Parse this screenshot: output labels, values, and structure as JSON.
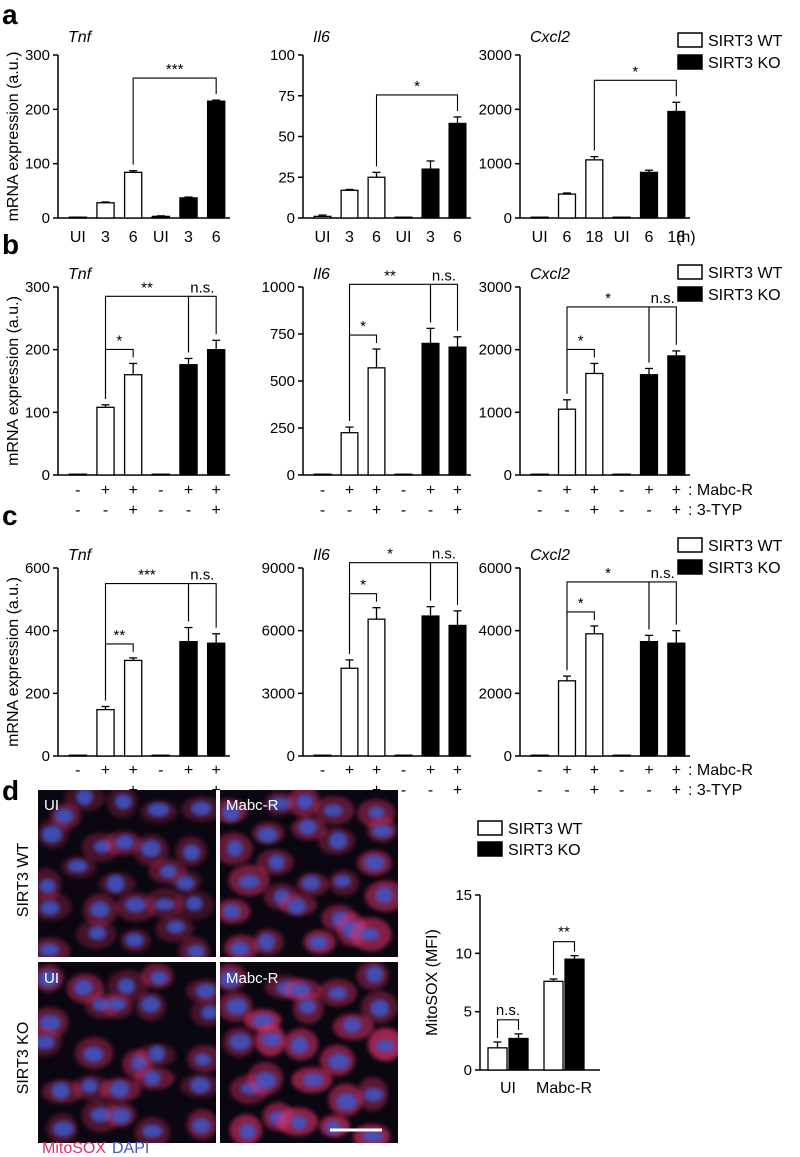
{
  "colors": {
    "wt_fill": "#ffffff",
    "ko_fill": "#000000",
    "mitosox": "#e0306a",
    "dapi": "#3f56c8"
  },
  "panels": {
    "a": {
      "label": "a"
    },
    "b": {
      "label": "b"
    },
    "c": {
      "label": "c"
    },
    "d": {
      "label": "d"
    }
  },
  "legend": {
    "wt": "SIRT3 WT",
    "ko": "SIRT3 KO"
  },
  "treatments": {
    "mabc": ": Mabc-R",
    "typ": ": 3-TYP",
    "plus": "+",
    "minus": "-"
  },
  "hour_unit": "(h)",
  "ylabels": {
    "mrna": "mRNA expression (a.u.)",
    "mitosox": "MitoSOX (MFI)"
  },
  "micrograph": {
    "col_labels": [
      "UI",
      "Mabc-R",
      "UI",
      "Mabc-R"
    ],
    "row_labels": [
      "SIRT3 WT",
      "SIRT3 KO"
    ],
    "stain_mitosox": "MitoSOX",
    "stain_dapi": "DAPI"
  },
  "chart_data": [
    {
      "id": "a-tnf",
      "type": "bar",
      "title": "Tnf",
      "ylabel": "mRNA expression (a.u.)",
      "ylim": [
        0,
        300
      ],
      "yticks": [
        0,
        100,
        200,
        300
      ],
      "categories": [
        "UI",
        "3",
        "6",
        "UI",
        "3",
        "6"
      ],
      "genotype": [
        "WT",
        "WT",
        "WT",
        "KO",
        "KO",
        "KO"
      ],
      "values": [
        1,
        28,
        84,
        3,
        37,
        215
      ],
      "errors": [
        0.5,
        1.5,
        3,
        1,
        1.5,
        2
      ],
      "annotations": [
        {
          "from": 2,
          "to": 5,
          "text": "***"
        }
      ]
    },
    {
      "id": "a-il6",
      "type": "bar",
      "title": "Il6",
      "ylim": [
        0,
        100
      ],
      "yticks": [
        0,
        25,
        50,
        75,
        100
      ],
      "categories": [
        "UI",
        "3",
        "6",
        "UI",
        "3",
        "6"
      ],
      "genotype": [
        "WT",
        "WT",
        "WT",
        "KO",
        "KO",
        "KO"
      ],
      "values": [
        1,
        17,
        25,
        0,
        30,
        58
      ],
      "errors": [
        0.8,
        0.5,
        3,
        0,
        5,
        4
      ],
      "annotations": [
        {
          "from": 2,
          "to": 5,
          "text": "*"
        }
      ]
    },
    {
      "id": "a-cxcl2",
      "type": "bar",
      "title": "Cxcl2",
      "ylim": [
        0,
        3000
      ],
      "yticks": [
        0,
        1000,
        2000,
        3000
      ],
      "categories": [
        "UI",
        "6",
        "18",
        "UI",
        "6",
        "18"
      ],
      "genotype": [
        "WT",
        "WT",
        "WT",
        "KO",
        "KO",
        "KO"
      ],
      "values": [
        0,
        440,
        1070,
        0,
        840,
        1960
      ],
      "errors": [
        0,
        20,
        60,
        0,
        40,
        170
      ],
      "annotations": [
        {
          "from": 2,
          "to": 5,
          "text": "*"
        }
      ]
    },
    {
      "id": "b-tnf",
      "type": "bar",
      "title": "Tnf",
      "ylabel": "mRNA expression (a.u.)",
      "ylim": [
        0,
        300
      ],
      "yticks": [
        0,
        100,
        200,
        300
      ],
      "mabc": [
        "-",
        "+",
        "+",
        "-",
        "+",
        "+"
      ],
      "typ": [
        "-",
        "-",
        "+",
        "-",
        "-",
        "+"
      ],
      "genotype": [
        "WT",
        "WT",
        "WT",
        "KO",
        "KO",
        "KO"
      ],
      "values": [
        0,
        108,
        160,
        1,
        176,
        200
      ],
      "errors": [
        0,
        4,
        18,
        0,
        10,
        15
      ],
      "annotations": [
        {
          "from": 1,
          "to": 2,
          "text": "*",
          "level": 1
        },
        {
          "from": 1,
          "to": 4,
          "text": "**",
          "level": 2
        },
        {
          "from": 4,
          "to": 5,
          "text": "n.s.",
          "level": 2
        }
      ]
    },
    {
      "id": "b-il6",
      "type": "bar",
      "title": "Il6",
      "ylim": [
        0,
        1000
      ],
      "yticks": [
        0,
        250,
        500,
        750,
        1000
      ],
      "mabc": [
        "-",
        "+",
        "+",
        "-",
        "+",
        "+"
      ],
      "typ": [
        "-",
        "-",
        "+",
        "-",
        "-",
        "+"
      ],
      "genotype": [
        "WT",
        "WT",
        "WT",
        "KO",
        "KO",
        "KO"
      ],
      "values": [
        0,
        225,
        570,
        2,
        700,
        680
      ],
      "errors": [
        0,
        30,
        100,
        0,
        80,
        55
      ],
      "annotations": [
        {
          "from": 1,
          "to": 2,
          "text": "*",
          "level": 1
        },
        {
          "from": 1,
          "to": 4,
          "text": "**",
          "level": 2
        },
        {
          "from": 4,
          "to": 5,
          "text": "n.s.",
          "level": 2
        }
      ]
    },
    {
      "id": "b-cxcl2",
      "type": "bar",
      "title": "Cxcl2",
      "ylim": [
        0,
        3000
      ],
      "yticks": [
        0,
        1000,
        2000,
        3000
      ],
      "mabc": [
        "-",
        "+",
        "+",
        "-",
        "+",
        "+"
      ],
      "typ": [
        "-",
        "-",
        "+",
        "-",
        "-",
        "+"
      ],
      "genotype": [
        "WT",
        "WT",
        "WT",
        "KO",
        "KO",
        "KO"
      ],
      "values": [
        0,
        1050,
        1620,
        10,
        1600,
        1900
      ],
      "errors": [
        0,
        150,
        160,
        0,
        100,
        80
      ],
      "annotations": [
        {
          "from": 1,
          "to": 2,
          "text": "*",
          "level": 1
        },
        {
          "from": 1,
          "to": 4,
          "text": "*",
          "level": 2
        },
        {
          "from": 4,
          "to": 5,
          "text": "n.s.",
          "level": 2
        }
      ]
    },
    {
      "id": "c-tnf",
      "type": "bar",
      "title": "Tnf",
      "ylabel": "mRNA expression (a.u.)",
      "ylim": [
        0,
        600
      ],
      "yticks": [
        0,
        200,
        400,
        600
      ],
      "mabc": [
        "-",
        "+",
        "+",
        "-",
        "+",
        "+"
      ],
      "typ": [
        "-",
        "-",
        "+",
        "-",
        "-",
        "+"
      ],
      "genotype": [
        "WT",
        "WT",
        "WT",
        "KO",
        "KO",
        "KO"
      ],
      "values": [
        0,
        148,
        305,
        0,
        365,
        360
      ],
      "errors": [
        0,
        10,
        8,
        0,
        45,
        30
      ],
      "annotations": [
        {
          "from": 1,
          "to": 2,
          "text": "**",
          "level": 1
        },
        {
          "from": 1,
          "to": 4,
          "text": "***",
          "level": 2
        },
        {
          "from": 4,
          "to": 5,
          "text": "n.s.",
          "level": 2
        }
      ]
    },
    {
      "id": "c-il6",
      "type": "bar",
      "title": "Il6",
      "ylim": [
        0,
        9000
      ],
      "yticks": [
        0,
        3000,
        6000,
        9000
      ],
      "mabc": [
        "-",
        "+",
        "+",
        "-",
        "+",
        "+"
      ],
      "typ": [
        "-",
        "-",
        "+",
        "-",
        "-",
        "+"
      ],
      "genotype": [
        "WT",
        "WT",
        "WT",
        "KO",
        "KO",
        "KO"
      ],
      "values": [
        0,
        4200,
        6550,
        0,
        6700,
        6250
      ],
      "errors": [
        0,
        400,
        550,
        0,
        450,
        700
      ],
      "annotations": [
        {
          "from": 1,
          "to": 2,
          "text": "*",
          "level": 1
        },
        {
          "from": 1,
          "to": 4,
          "text": "*",
          "level": 2
        },
        {
          "from": 4,
          "to": 5,
          "text": "n.s.",
          "level": 2
        }
      ]
    },
    {
      "id": "c-cxcl2",
      "type": "bar",
      "title": "Cxcl2",
      "ylim": [
        0,
        6000
      ],
      "yticks": [
        0,
        2000,
        4000,
        6000
      ],
      "mabc": [
        "-",
        "+",
        "+",
        "-",
        "+",
        "+"
      ],
      "typ": [
        "-",
        "-",
        "+",
        "-",
        "-",
        "+"
      ],
      "genotype": [
        "WT",
        "WT",
        "WT",
        "KO",
        "KO",
        "KO"
      ],
      "values": [
        0,
        2400,
        3900,
        0,
        3650,
        3600
      ],
      "errors": [
        0,
        150,
        250,
        0,
        200,
        400
      ],
      "annotations": [
        {
          "from": 1,
          "to": 2,
          "text": "*",
          "level": 1
        },
        {
          "from": 1,
          "to": 4,
          "text": "*",
          "level": 2
        },
        {
          "from": 4,
          "to": 5,
          "text": "n.s.",
          "level": 2
        }
      ]
    },
    {
      "id": "d-mitosox",
      "type": "bar",
      "ylabel": "MitoSOX (MFI)",
      "ylim": [
        0,
        15
      ],
      "yticks": [
        0,
        5,
        10,
        15
      ],
      "categories": [
        "UI",
        "Mabc-R"
      ],
      "series": [
        {
          "name": "SIRT3 WT",
          "values": [
            1.9,
            7.6
          ],
          "errors": [
            0.5,
            0.2
          ]
        },
        {
          "name": "SIRT3 KO",
          "values": [
            2.7,
            9.5
          ],
          "errors": [
            0.4,
            0.3
          ]
        }
      ],
      "annotations": [
        {
          "group": 0,
          "text": "n.s."
        },
        {
          "group": 1,
          "text": "**"
        }
      ]
    }
  ]
}
